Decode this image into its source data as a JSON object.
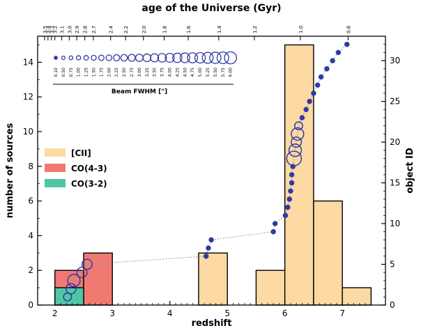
{
  "chart_data": {
    "type": "bar",
    "title": "age of the Universe (Gyr)",
    "xlabel": "redshift",
    "ylabel": "number of sources",
    "ylabel_right": "object ID",
    "xlim": [
      1.7,
      7.75
    ],
    "ylim": [
      0,
      15.5
    ],
    "ylim_right": [
      0,
      33
    ],
    "x_ticks": [
      2,
      3,
      4,
      5,
      6,
      7
    ],
    "y_ticks": [
      0,
      2,
      4,
      6,
      8,
      10,
      12,
      14
    ],
    "y_right_ticks": [
      0,
      5,
      10,
      15,
      20,
      25,
      30
    ],
    "top_ticks": [
      {
        "z": 1.82,
        "label": "3.5"
      },
      {
        "z": 1.88,
        "label": "3.4"
      },
      {
        "z": 1.94,
        "label": "3.3"
      },
      {
        "z": 2.0,
        "label": "3.2"
      },
      {
        "z": 2.12,
        "label": "3.1"
      },
      {
        "z": 2.25,
        "label": "3.0"
      },
      {
        "z": 2.38,
        "label": "2.9"
      },
      {
        "z": 2.52,
        "label": "2.8"
      },
      {
        "z": 2.67,
        "label": "2.7"
      },
      {
        "z": 2.97,
        "label": "2.4"
      },
      {
        "z": 3.23,
        "label": "2.2"
      },
      {
        "z": 3.54,
        "label": "2.0"
      },
      {
        "z": 3.9,
        "label": "1.8"
      },
      {
        "z": 4.32,
        "label": "1.6"
      },
      {
        "z": 4.85,
        "label": "1.4"
      },
      {
        "z": 5.47,
        "label": "1.2"
      },
      {
        "z": 6.27,
        "label": "1.0"
      },
      {
        "z": 7.1,
        "label": "0.8"
      }
    ],
    "series": [
      {
        "name": "[CII]",
        "color": "#fdd9a3",
        "bars": [
          {
            "x0": 4.5,
            "x1": 5.0,
            "value": 3
          },
          {
            "x0": 5.5,
            "x1": 6.0,
            "value": 2
          },
          {
            "x0": 6.0,
            "x1": 6.5,
            "value": 15
          },
          {
            "x0": 6.5,
            "x1": 7.0,
            "value": 6
          },
          {
            "x0": 7.0,
            "x1": 7.5,
            "value": 1
          }
        ]
      },
      {
        "name": "CO(4-3)",
        "color": "#f07a72",
        "bars": [
          {
            "x0": 2.0,
            "x1": 2.5,
            "value": 2
          },
          {
            "x0": 2.5,
            "x1": 3.0,
            "value": 3
          }
        ]
      },
      {
        "name": "CO(3-2)",
        "color": "#4fc7a4",
        "bars": [
          {
            "x0": 2.0,
            "x1": 2.5,
            "value": 1
          }
        ]
      }
    ],
    "object_points": [
      {
        "z": 2.22,
        "id": 1,
        "size": 2
      },
      {
        "z": 2.28,
        "id": 2,
        "size": 3
      },
      {
        "z": 2.33,
        "id": 3,
        "size": 4
      },
      {
        "z": 2.47,
        "id": 4,
        "size": 3
      },
      {
        "z": 2.56,
        "id": 5,
        "size": 3
      },
      {
        "z": 4.63,
        "id": 6,
        "size": 1
      },
      {
        "z": 4.67,
        "id": 7,
        "size": 1
      },
      {
        "z": 4.72,
        "id": 8,
        "size": 1
      },
      {
        "z": 5.8,
        "id": 9,
        "size": 1
      },
      {
        "z": 5.83,
        "id": 10,
        "size": 1
      },
      {
        "z": 6.01,
        "id": 11,
        "size": 1
      },
      {
        "z": 6.05,
        "id": 12,
        "size": 1
      },
      {
        "z": 6.08,
        "id": 13,
        "size": 1
      },
      {
        "z": 6.1,
        "id": 14,
        "size": 1
      },
      {
        "z": 6.12,
        "id": 15,
        "size": 1
      },
      {
        "z": 6.12,
        "id": 16,
        "size": 1
      },
      {
        "z": 6.14,
        "id": 17,
        "size": 1
      },
      {
        "z": 6.16,
        "id": 18,
        "size": 5
      },
      {
        "z": 6.18,
        "id": 19,
        "size": 4
      },
      {
        "z": 6.2,
        "id": 20,
        "size": 3
      },
      {
        "z": 6.22,
        "id": 21,
        "size": 4
      },
      {
        "z": 6.24,
        "id": 22,
        "size": 2
      },
      {
        "z": 6.3,
        "id": 23,
        "size": 1
      },
      {
        "z": 6.37,
        "id": 24,
        "size": 1
      },
      {
        "z": 6.43,
        "id": 25,
        "size": 1
      },
      {
        "z": 6.5,
        "id": 26,
        "size": 1
      },
      {
        "z": 6.57,
        "id": 27,
        "size": 1
      },
      {
        "z": 6.63,
        "id": 28,
        "size": 1
      },
      {
        "z": 6.73,
        "id": 29,
        "size": 1
      },
      {
        "z": 6.83,
        "id": 30,
        "size": 1
      },
      {
        "z": 6.93,
        "id": 31,
        "size": 1
      },
      {
        "z": 7.08,
        "id": 32,
        "size": 1
      }
    ],
    "beam_legend": {
      "title": "Beam FWHM [\"]",
      "values": [
        "0.10",
        "0.50",
        "0.75",
        "1.00",
        "1.25",
        "1.50",
        "1.75",
        "2.00",
        "2.25",
        "2.50",
        "2.75",
        "3.00",
        "3.25",
        "3.50",
        "3.75",
        "4.00",
        "4.25",
        "4.50",
        "4.75",
        "5.00",
        "5.25",
        "5.50",
        "5.75",
        "6.00"
      ]
    },
    "legend_position": "center-left",
    "grid": false,
    "colors": {
      "marker": "#2f3aa6",
      "connector": "#999999",
      "axis": "#000000"
    }
  }
}
